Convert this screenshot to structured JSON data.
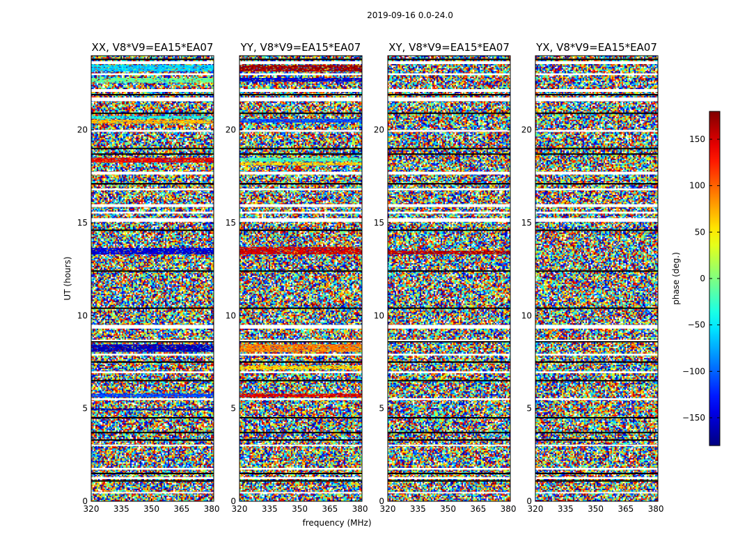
{
  "figure": {
    "suptitle": "2019-09-16 0.0-24.0"
  },
  "chart_data": {
    "type": "heatmap",
    "title": "2019-09-16 0.0-24.0",
    "xlabel": "frequency (MHz)",
    "ylabel": "UT (hours)",
    "xlim": [
      320,
      381
    ],
    "ylim": [
      0,
      24
    ],
    "x_ticks": [
      320,
      335,
      350,
      365,
      380
    ],
    "y_ticks": [
      0,
      5,
      10,
      15,
      20
    ],
    "colorbar": {
      "label": "phase (deg.)",
      "range": [
        -180,
        180
      ],
      "ticks": [
        -150,
        -100,
        -50,
        0,
        50,
        100,
        150
      ],
      "tick_labels": [
        "−150",
        "−100",
        "−50",
        "0",
        "50",
        "100",
        "150"
      ],
      "colormap": "jet"
    },
    "panels": [
      {
        "title": "XX, V8*V9=EA15*EA07",
        "polarization": "XX",
        "coherent_bands": [
          {
            "t_start": 23.15,
            "t_end": 23.5,
            "phase": -60
          },
          {
            "t_start": 22.55,
            "t_end": 22.8,
            "phase": -10
          },
          {
            "t_start": 20.35,
            "t_end": 20.55,
            "phase": 70
          },
          {
            "t_start": 20.6,
            "t_end": 20.75,
            "phase": -40
          },
          {
            "t_start": 18.25,
            "t_end": 18.5,
            "phase": 140
          },
          {
            "t_start": 13.3,
            "t_end": 13.65,
            "phase": -150
          },
          {
            "t_start": 8.05,
            "t_end": 8.45,
            "phase": -160
          },
          {
            "t_start": 5.6,
            "t_end": 5.8,
            "phase": -110
          },
          {
            "t_start": 4.9,
            "t_end": 5.0,
            "phase": -165
          }
        ]
      },
      {
        "title": "YY, V8*V9=EA15*EA07",
        "polarization": "YY",
        "coherent_bands": [
          {
            "t_start": 23.15,
            "t_end": 23.5,
            "phase": 170
          },
          {
            "t_start": 22.6,
            "t_end": 22.8,
            "phase": -150
          },
          {
            "t_start": 20.4,
            "t_end": 20.6,
            "phase": -110
          },
          {
            "t_start": 18.3,
            "t_end": 18.5,
            "phase": -20
          },
          {
            "t_start": 18.1,
            "t_end": 18.25,
            "phase": 60
          },
          {
            "t_start": 13.3,
            "t_end": 13.7,
            "phase": 150
          },
          {
            "t_start": 8.05,
            "t_end": 8.45,
            "phase": 90
          },
          {
            "t_start": 5.6,
            "t_end": 5.8,
            "phase": 145
          },
          {
            "t_start": 7.1,
            "t_end": 7.3,
            "phase": 60
          }
        ]
      },
      {
        "title": "XY, V8*V9=EA15*EA07",
        "polarization": "XY",
        "coherent_bands": [
          {
            "t_start": 13.3,
            "t_end": 13.5,
            "phase": 160
          }
        ]
      },
      {
        "title": "YX, V8*V9=EA15*EA07",
        "polarization": "YX",
        "coherent_bands": []
      }
    ],
    "flagged_rows_hours": [
      {
        "t_start": 23.55,
        "t_end": 23.7
      },
      {
        "t_start": 22.95,
        "t_end": 23.05
      },
      {
        "t_start": 22.05,
        "t_end": 22.2
      },
      {
        "t_start": 21.55,
        "t_end": 21.75
      },
      {
        "t_start": 19.9,
        "t_end": 20.0
      },
      {
        "t_start": 17.6,
        "t_end": 17.75
      },
      {
        "t_start": 16.75,
        "t_end": 16.85
      },
      {
        "t_start": 15.85,
        "t_end": 16.0
      },
      {
        "t_start": 15.5,
        "t_end": 15.6
      },
      {
        "t_start": 15.05,
        "t_end": 15.25
      },
      {
        "t_start": 9.3,
        "t_end": 9.5
      },
      {
        "t_start": 8.65,
        "t_end": 8.7
      },
      {
        "t_start": 7.85,
        "t_end": 7.95
      },
      {
        "t_start": 6.9,
        "t_end": 7.0
      },
      {
        "t_start": 5.45,
        "t_end": 5.55
      },
      {
        "t_start": 3.0,
        "t_end": 3.05
      },
      {
        "t_start": 1.7,
        "t_end": 1.8
      },
      {
        "t_start": 1.2,
        "t_end": 1.3
      },
      {
        "t_start": 0.45,
        "t_end": 0.5
      }
    ],
    "dark_lines_hours": [
      23.8,
      21.9,
      20.9,
      19.0,
      18.7,
      17.1,
      14.6,
      12.4,
      10.4,
      8.6,
      7.5,
      6.5,
      4.5,
      3.7,
      3.3,
      1.5,
      1.1
    ]
  }
}
